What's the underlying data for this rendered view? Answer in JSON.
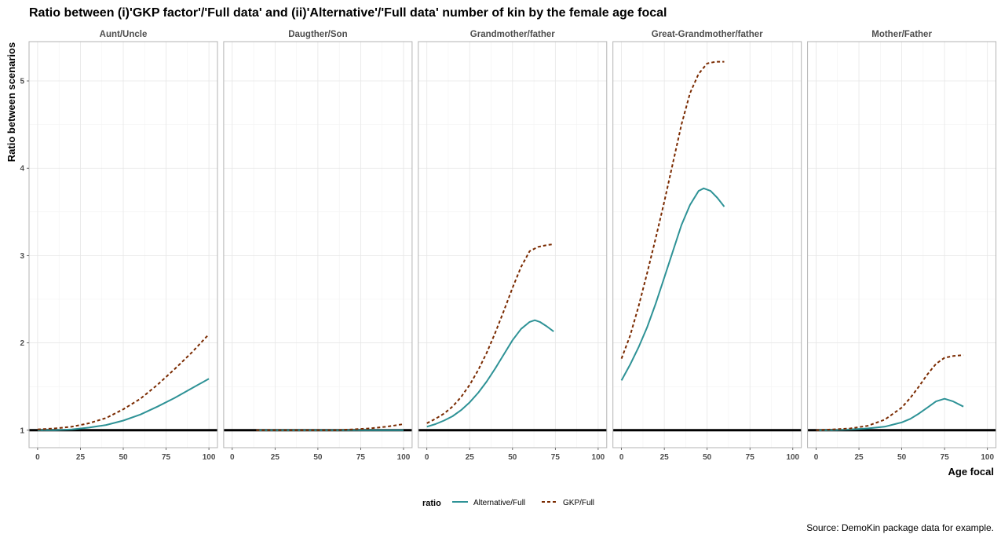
{
  "chart_data": {
    "type": "line",
    "title": "Ratio between (i)'GKP factor'/'Full data' and (ii)'Alternative'/'Full data' number of kin by the female age focal",
    "xlabel": "Age focal",
    "ylabel": "Ratio between scenarios",
    "xlim": [
      -5,
      105
    ],
    "ylim": [
      0.8,
      5.45
    ],
    "x_ticks": [
      0,
      25,
      50,
      75,
      100
    ],
    "y_ticks": [
      1,
      2,
      3,
      4,
      5
    ],
    "x_tick_labels": [
      "0",
      "25",
      "50",
      "75",
      "100"
    ],
    "y_tick_labels": [
      "1",
      "2",
      "3",
      "4",
      "5"
    ],
    "grid": true,
    "reference_line_y": 1,
    "legend": {
      "title": "ratio",
      "position": "bottom",
      "entries": [
        {
          "label": "Alternative/Full",
          "color": "#2e9296",
          "dash": "solid"
        },
        {
          "label": "GKP/Full",
          "color": "#7a2a00",
          "dash": "dashed"
        }
      ]
    },
    "caption": "Source: DemoKin package data for example.",
    "panels": [
      {
        "label": "Aunt/Uncle",
        "series": [
          {
            "name": "Alternative/Full",
            "x": [
              0,
              10,
              20,
              30,
              40,
              50,
              60,
              70,
              80,
              90,
              100
            ],
            "y": [
              1.0,
              1.0,
              1.01,
              1.03,
              1.06,
              1.11,
              1.18,
              1.27,
              1.37,
              1.48,
              1.59
            ]
          },
          {
            "name": "GKP/Full",
            "x": [
              0,
              10,
              20,
              30,
              40,
              50,
              60,
              70,
              80,
              90,
              100
            ],
            "y": [
              1.01,
              1.02,
              1.04,
              1.08,
              1.14,
              1.24,
              1.36,
              1.52,
              1.7,
              1.89,
              2.1
            ]
          }
        ]
      },
      {
        "label": "Daugther/Son",
        "series": [
          {
            "name": "Alternative/Full",
            "x": [
              14,
              30,
              50,
              70,
              85,
              100
            ],
            "y": [
              1.0,
              1.0,
              1.0,
              1.0,
              1.0,
              1.0
            ]
          },
          {
            "name": "GKP/Full",
            "x": [
              14,
              30,
              50,
              60,
              70,
              80,
              90,
              100
            ],
            "y": [
              1.0,
              1.0,
              1.0,
              1.0,
              1.01,
              1.02,
              1.04,
              1.07
            ]
          }
        ]
      },
      {
        "label": "Grandmother/father",
        "series": [
          {
            "name": "Alternative/Full",
            "x": [
              0,
              5,
              10,
              15,
              20,
              25,
              30,
              35,
              40,
              45,
              50,
              55,
              60,
              63,
              66,
              70,
              74
            ],
            "y": [
              1.04,
              1.07,
              1.11,
              1.16,
              1.23,
              1.32,
              1.43,
              1.56,
              1.71,
              1.87,
              2.03,
              2.16,
              2.24,
              2.26,
              2.24,
              2.19,
              2.13
            ]
          },
          {
            "name": "GKP/Full",
            "x": [
              0,
              5,
              10,
              15,
              20,
              25,
              30,
              35,
              40,
              45,
              50,
              55,
              60,
              65,
              70,
              74
            ],
            "y": [
              1.08,
              1.13,
              1.19,
              1.27,
              1.38,
              1.52,
              1.69,
              1.89,
              2.12,
              2.37,
              2.63,
              2.87,
              3.05,
              3.1,
              3.12,
              3.13
            ]
          }
        ]
      },
      {
        "label": "Great-Grandmother/father",
        "series": [
          {
            "name": "Alternative/Full",
            "x": [
              0,
              5,
              10,
              15,
              20,
              25,
              30,
              35,
              40,
              45,
              48,
              52,
              56,
              60
            ],
            "y": [
              1.57,
              1.75,
              1.95,
              2.18,
              2.45,
              2.75,
              3.05,
              3.35,
              3.58,
              3.74,
              3.77,
              3.74,
              3.66,
              3.56
            ]
          },
          {
            "name": "GKP/Full",
            "x": [
              0,
              5,
              10,
              15,
              20,
              25,
              30,
              35,
              40,
              45,
              50,
              55,
              60
            ],
            "y": [
              1.82,
              2.08,
              2.42,
              2.8,
              3.2,
              3.62,
              4.06,
              4.5,
              4.86,
              5.08,
              5.2,
              5.22,
              5.22
            ]
          }
        ]
      },
      {
        "label": "Mother/Father",
        "series": [
          {
            "name": "Alternative/Full",
            "x": [
              0,
              10,
              20,
              30,
              40,
              50,
              55,
              60,
              65,
              70,
              75,
              80,
              86
            ],
            "y": [
              1.0,
              1.0,
              1.01,
              1.02,
              1.04,
              1.09,
              1.13,
              1.19,
              1.26,
              1.33,
              1.36,
              1.33,
              1.27
            ]
          },
          {
            "name": "GKP/Full",
            "x": [
              0,
              10,
              20,
              30,
              40,
              50,
              55,
              60,
              65,
              70,
              75,
              80,
              86
            ],
            "y": [
              1.0,
              1.01,
              1.02,
              1.05,
              1.12,
              1.26,
              1.37,
              1.5,
              1.64,
              1.76,
              1.83,
              1.85,
              1.86
            ]
          }
        ]
      }
    ]
  }
}
